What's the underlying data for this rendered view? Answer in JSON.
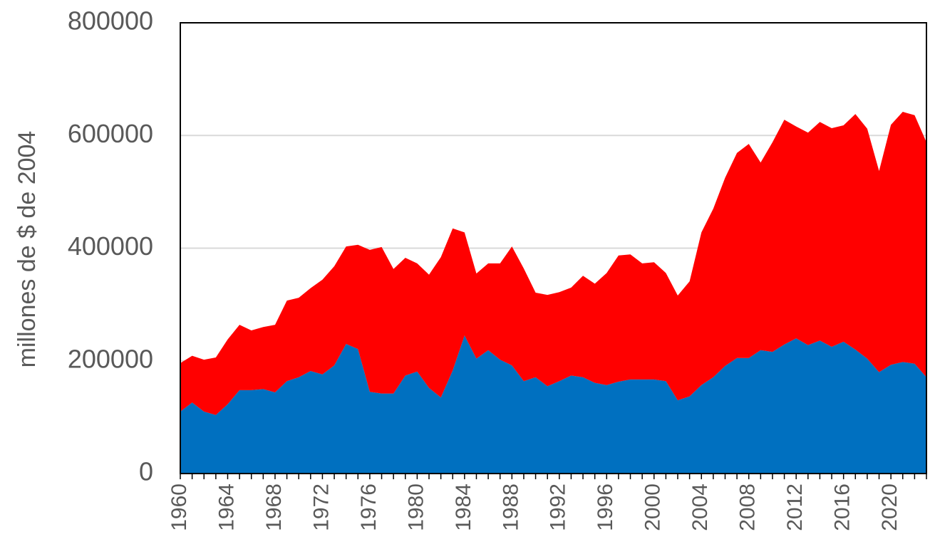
{
  "chart_data": {
    "type": "stacked_area",
    "y_label": "millones de $ de 2004",
    "x": [
      1960,
      1961,
      1962,
      1963,
      1964,
      1965,
      1966,
      1967,
      1968,
      1969,
      1970,
      1971,
      1972,
      1973,
      1974,
      1975,
      1976,
      1977,
      1978,
      1979,
      1980,
      1981,
      1982,
      1983,
      1984,
      1985,
      1986,
      1987,
      1988,
      1989,
      1990,
      1991,
      1992,
      1993,
      1994,
      1995,
      1996,
      1997,
      1998,
      1999,
      2000,
      2001,
      2002,
      2003,
      2004,
      2005,
      2006,
      2007,
      2008,
      2009,
      2010,
      2011,
      2012,
      2013,
      2014,
      2015,
      2016,
      2017,
      2018,
      2019,
      2020,
      2021,
      2022,
      2023
    ],
    "xlim": [
      1960,
      2023
    ],
    "xticks": [
      1960,
      1964,
      1968,
      1972,
      1976,
      1980,
      1984,
      1988,
      1992,
      1996,
      2000,
      2004,
      2008,
      2012,
      2016,
      2020
    ],
    "ylim": [
      0,
      800000
    ],
    "yticks": [
      0,
      200000,
      400000,
      600000,
      800000
    ],
    "grid": true,
    "series": [
      {
        "color": "#0070c0",
        "values": [
          110000,
          126000,
          110000,
          104000,
          123000,
          148000,
          148000,
          150000,
          144000,
          164000,
          171000,
          182000,
          176000,
          192000,
          230000,
          221000,
          145000,
          142000,
          142000,
          174000,
          181000,
          152000,
          135000,
          183000,
          245000,
          204000,
          219000,
          202000,
          192000,
          164000,
          171000,
          155000,
          164000,
          174000,
          171000,
          161000,
          157000,
          163000,
          167000,
          167000,
          167000,
          164000,
          130000,
          137000,
          157000,
          171000,
          191000,
          205000,
          205000,
          219000,
          216000,
          229000,
          240000,
          228000,
          236000,
          225000,
          234000,
          220000,
          204000,
          180000,
          193000,
          198000,
          195000,
          171000
        ]
      },
      {
        "color": "#ff0000",
        "values": [
          86000,
          83000,
          92000,
          102000,
          115000,
          116000,
          106000,
          110000,
          120000,
          143000,
          141000,
          147000,
          168000,
          176000,
          173000,
          185000,
          252000,
          260000,
          221000,
          209000,
          192000,
          201000,
          249000,
          252000,
          183000,
          151000,
          154000,
          171000,
          211000,
          200000,
          150000,
          162000,
          158000,
          156000,
          180000,
          176000,
          199000,
          224000,
          222000,
          206000,
          208000,
          192000,
          186000,
          204000,
          271000,
          299000,
          334000,
          364000,
          380000,
          333000,
          372000,
          399000,
          376000,
          377000,
          388000,
          388000,
          384000,
          418000,
          408000,
          357000,
          426000,
          444000,
          441000,
          417000
        ]
      }
    ]
  }
}
